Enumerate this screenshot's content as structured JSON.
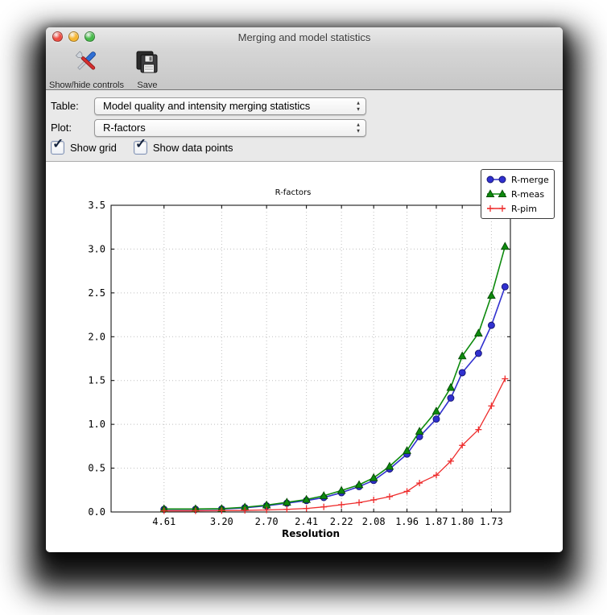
{
  "window": {
    "title": "Merging and model statistics",
    "traffic_lights": [
      {
        "name": "close",
        "color": "#ee4d43"
      },
      {
        "name": "minimize",
        "color": "#f6b632"
      },
      {
        "name": "zoom",
        "color": "#47ba4a"
      }
    ]
  },
  "toolbar": {
    "buttons": [
      {
        "label": "Show/hide controls",
        "icon": "tools-icon"
      },
      {
        "label": "Save",
        "icon": "save-icon"
      }
    ]
  },
  "controls": {
    "table_label": "Table:",
    "table_value": "Model quality and intensity merging statistics",
    "plot_label": "Plot:",
    "plot_value": "R-factors",
    "checkboxes": [
      {
        "label": "Show grid",
        "checked": true
      },
      {
        "label": "Show data points",
        "checked": true
      }
    ]
  },
  "chart_data": {
    "type": "line",
    "title": "R-factors",
    "xlabel": "Resolution",
    "x_axis_mapping": "x position linear in 1/d^2; 20 equal-volume resolution shells",
    "x_dspacings": [
      4.61,
      3.65,
      3.19,
      2.9,
      2.69,
      2.53,
      2.4,
      2.3,
      2.21,
      2.13,
      2.07,
      2.01,
      1.95,
      1.91,
      1.86,
      1.82,
      1.79,
      1.75,
      1.72,
      1.69
    ],
    "x_tick_labels": [
      "4.61",
      "3.20",
      "2.70",
      "2.41",
      "2.22",
      "2.08",
      "1.96",
      "1.87",
      "1.80",
      "1.73"
    ],
    "x_tick_point_indices": [
      0,
      2,
      4,
      6,
      8,
      10,
      12,
      14,
      16,
      18
    ],
    "ylim": [
      0.0,
      3.5
    ],
    "y_ticks": [
      "0.0",
      "0.5",
      "1.0",
      "1.5",
      "2.0",
      "2.5",
      "3.0",
      "3.5"
    ],
    "grid": true,
    "show_data_points": true,
    "legend_position": "upper right",
    "series": [
      {
        "name": "R-merge",
        "color": "#3030cf",
        "marker": "circle",
        "values": [
          0.03,
          0.03,
          0.033,
          0.048,
          0.07,
          0.1,
          0.13,
          0.165,
          0.22,
          0.29,
          0.36,
          0.49,
          0.66,
          0.86,
          1.06,
          1.3,
          1.59,
          1.81,
          2.13,
          2.57
        ]
      },
      {
        "name": "R-meas",
        "color": "#0d8a0d",
        "marker": "triangle",
        "values": [
          0.034,
          0.034,
          0.037,
          0.054,
          0.078,
          0.11,
          0.142,
          0.185,
          0.245,
          0.31,
          0.39,
          0.52,
          0.7,
          0.92,
          1.15,
          1.42,
          1.78,
          2.04,
          2.47,
          3.03
        ]
      },
      {
        "name": "R-pim",
        "color": "#ee2c2c",
        "marker": "plus",
        "values": [
          0.013,
          0.013,
          0.015,
          0.018,
          0.023,
          0.03,
          0.04,
          0.058,
          0.083,
          0.107,
          0.138,
          0.175,
          0.235,
          0.33,
          0.42,
          0.58,
          0.76,
          0.94,
          1.21,
          1.52
        ]
      }
    ]
  }
}
